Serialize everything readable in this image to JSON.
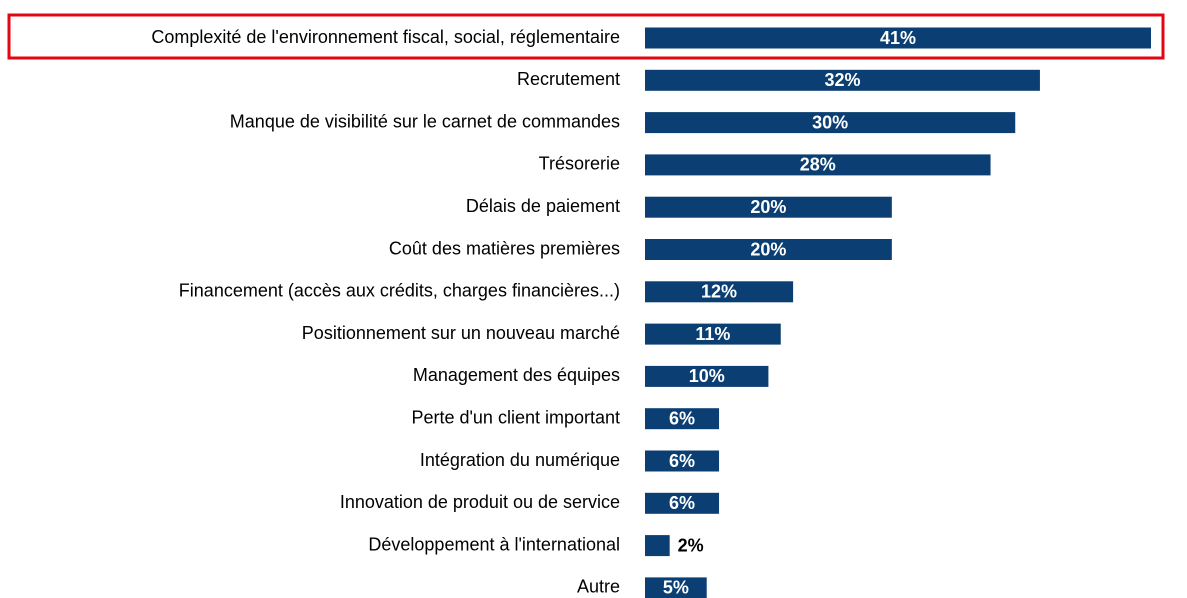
{
  "chart_data": {
    "type": "barh",
    "color": "#0b3f73",
    "categories": [
      "Complexité de l'environnement fiscal, social, réglementaire",
      "Recrutement",
      "Manque de visibilité sur le carnet de commandes",
      "Trésorerie",
      "Délais de paiement",
      "Coût des matières premières",
      "Financement (accès aux crédits, charges financières...)",
      "Positionnement sur un nouveau marché",
      "Management des équipes",
      "Perte d'un client important",
      "Intégration du numérique",
      "Innovation de produit ou de service",
      "Développement à l'international",
      "Autre"
    ],
    "values": [
      41,
      32,
      30,
      28,
      20,
      20,
      12,
      11,
      10,
      6,
      6,
      6,
      2,
      5
    ],
    "value_labels": [
      "41%",
      "32%",
      "30%",
      "28%",
      "20%",
      "20%",
      "12%",
      "11%",
      "10%",
      "6%",
      "6%",
      "6%",
      "2%",
      "5%"
    ]
  }
}
